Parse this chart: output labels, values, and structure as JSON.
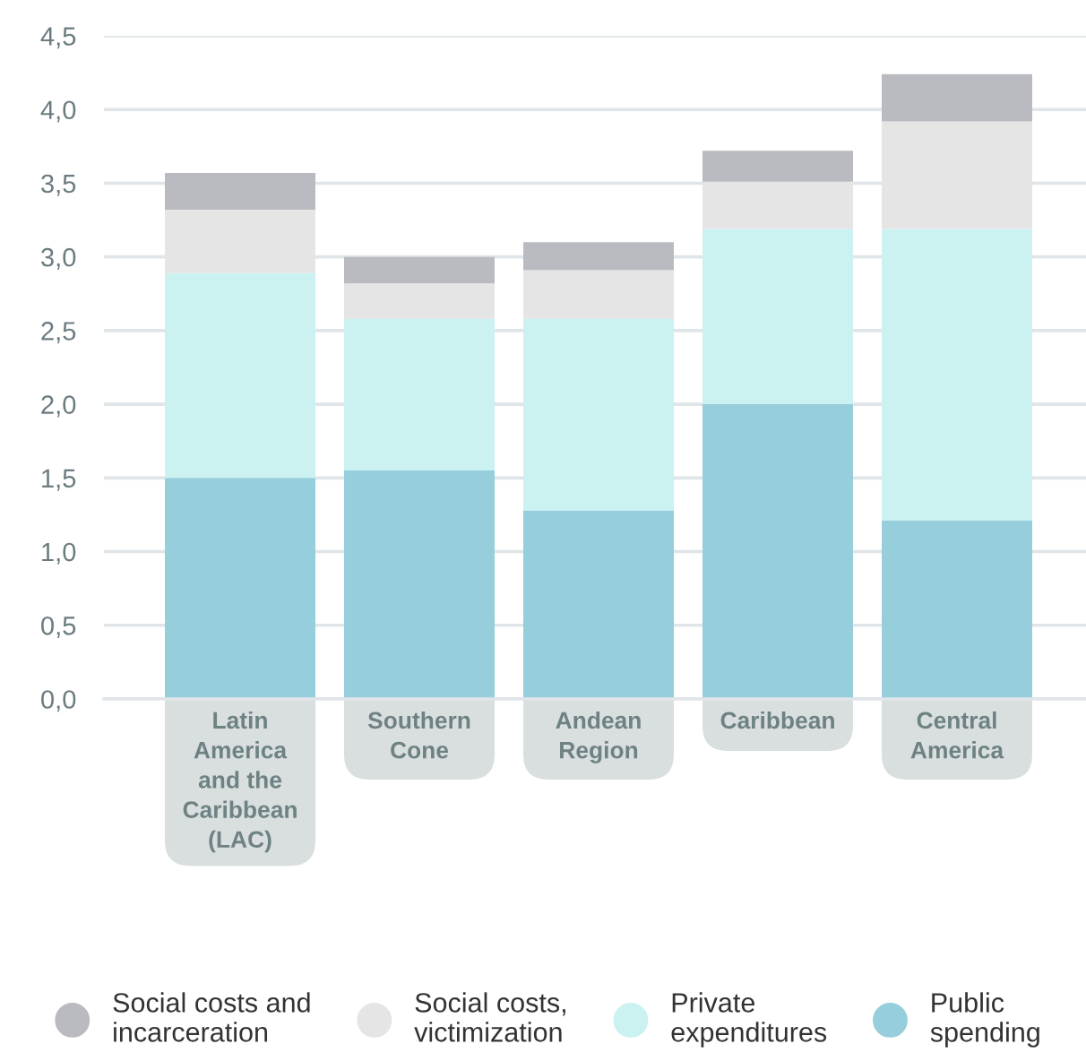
{
  "chart_data": {
    "type": "bar",
    "stacked": true,
    "categories": [
      "Latin America and the Caribbean (LAC)",
      "Southern Cone",
      "Andean Region",
      "Caribbean",
      "Central America"
    ],
    "series": [
      {
        "name": "Public spending",
        "color": "#96cedc",
        "values": [
          1.5,
          1.55,
          1.28,
          2.0,
          1.21
        ]
      },
      {
        "name": "Private expenditures",
        "color": "#cbf1f1",
        "values": [
          1.39,
          1.03,
          1.3,
          1.19,
          1.98
        ]
      },
      {
        "name": "Social costs, victimization",
        "color": "#e5e5e5",
        "values": [
          0.43,
          0.24,
          0.33,
          0.32,
          0.73
        ]
      },
      {
        "name": "Social costs and incarceration",
        "color": "#b9bbc1",
        "values": [
          0.25,
          0.18,
          0.19,
          0.21,
          0.32
        ]
      }
    ],
    "ylim": [
      0,
      4.5
    ],
    "yticks": [
      {
        "value": 0,
        "label": "0,0"
      },
      {
        "value": 0.5,
        "label": "0,5"
      },
      {
        "value": 1.0,
        "label": "1,0"
      },
      {
        "value": 1.5,
        "label": "1,5"
      },
      {
        "value": 2.0,
        "label": "2,0"
      },
      {
        "value": 2.5,
        "label": "2,5"
      },
      {
        "value": 3.0,
        "label": "3,0"
      },
      {
        "value": 3.5,
        "label": "3,5"
      },
      {
        "value": 4.0,
        "label": "4,0"
      },
      {
        "value": 4.5,
        "label": "4,5"
      }
    ],
    "grid": "y",
    "legend": "bottom"
  }
}
